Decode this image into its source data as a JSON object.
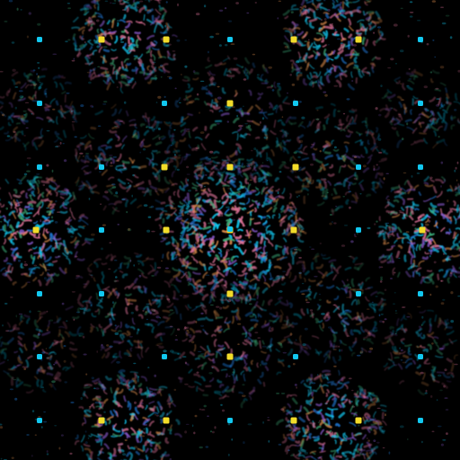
{
  "image": {
    "description_kind": "abstract-diffraction-pattern",
    "background": "#000000",
    "palette": {
      "cyan": "#12c8f0",
      "blue": "#1f7ee0",
      "pink": "#e0739a",
      "orange": "#d98a4a",
      "yellow": "#f2dc2a",
      "green": "#3cae7a",
      "violet": "#8a5ad0"
    },
    "pattern": {
      "symmetry": "square-lattice",
      "cluster_count": 9,
      "bright_dot_colors": [
        "yellow",
        "cyan"
      ]
    }
  }
}
